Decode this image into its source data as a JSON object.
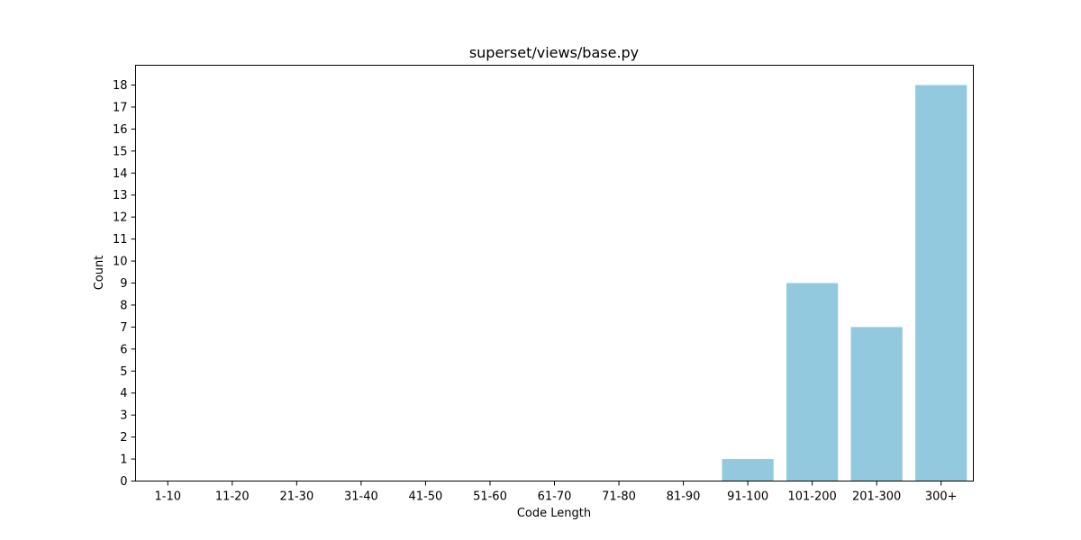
{
  "chart_data": {
    "type": "bar",
    "title": "superset/views/base.py",
    "xlabel": "Code Length",
    "ylabel": "Count",
    "categories": [
      "1-10",
      "11-20",
      "21-30",
      "31-40",
      "41-50",
      "51-60",
      "61-70",
      "71-80",
      "81-90",
      "91-100",
      "101-200",
      "201-300",
      "300+"
    ],
    "values": [
      0,
      0,
      0,
      0,
      0,
      0,
      0,
      0,
      0,
      1,
      9,
      7,
      18
    ],
    "ylim": [
      0,
      18.9
    ],
    "yticks": [
      "0",
      "1",
      "2",
      "3",
      "4",
      "5",
      "6",
      "7",
      "8",
      "9",
      "10",
      "11",
      "12",
      "13",
      "14",
      "15",
      "16",
      "17",
      "18"
    ],
    "bar_color": "#92c9de",
    "grid": false,
    "legend": "none"
  }
}
